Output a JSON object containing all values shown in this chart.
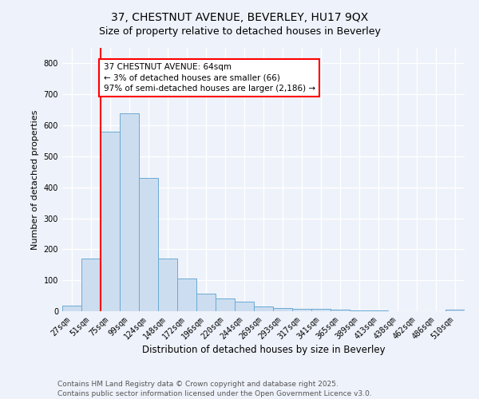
{
  "title": "37, CHESTNUT AVENUE, BEVERLEY, HU17 9QX",
  "subtitle": "Size of property relative to detached houses in Beverley",
  "xlabel": "Distribution of detached houses by size in Beverley",
  "ylabel": "Number of detached properties",
  "bins": [
    "27sqm",
    "51sqm",
    "75sqm",
    "99sqm",
    "124sqm",
    "148sqm",
    "172sqm",
    "196sqm",
    "220sqm",
    "244sqm",
    "269sqm",
    "293sqm",
    "317sqm",
    "341sqm",
    "365sqm",
    "389sqm",
    "413sqm",
    "438sqm",
    "462sqm",
    "486sqm",
    "510sqm"
  ],
  "values": [
    17,
    170,
    580,
    640,
    430,
    170,
    105,
    57,
    42,
    32,
    15,
    10,
    9,
    7,
    5,
    3,
    2,
    1,
    1,
    0,
    5
  ],
  "bar_color": "#ccddf0",
  "bar_edge_color": "#6aaad4",
  "redline_bin_index": 2,
  "annotation_text": "37 CHESTNUT AVENUE: 64sqm\n← 3% of detached houses are smaller (66)\n97% of semi-detached houses are larger (2,186) →",
  "annotation_box_color": "white",
  "annotation_box_edge_color": "red",
  "annotation_fontsize": 7.5,
  "title_fontsize": 10,
  "subtitle_fontsize": 9,
  "ylabel_fontsize": 8,
  "xlabel_fontsize": 8.5,
  "tick_fontsize": 7,
  "ylim": [
    0,
    850
  ],
  "yticks": [
    0,
    100,
    200,
    300,
    400,
    500,
    600,
    700,
    800
  ],
  "background_color": "#eef2fa",
  "plot_background": "#eef2fa",
  "grid_color": "white",
  "footer_text": "Contains HM Land Registry data © Crown copyright and database right 2025.\nContains public sector information licensed under the Open Government Licence v3.0.",
  "footer_fontsize": 6.5
}
